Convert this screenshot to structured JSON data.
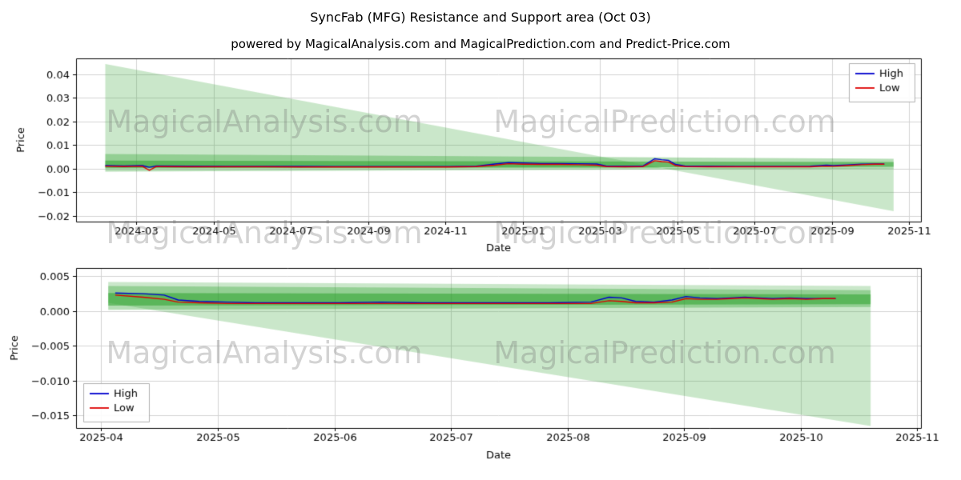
{
  "page": {
    "title": "SyncFab (MFG) Resistance and Support area (Oct 03)",
    "subtitle": "powered by MagicalAnalysis.com and MagicalPrediction.com and Predict-Price.com"
  },
  "watermarks": {
    "left": "MagicalAnalysis.com",
    "right": "MagicalPrediction.com"
  },
  "colors": {
    "high": "#0000cd",
    "low": "#dd0000",
    "band": "#2ca02c",
    "grid": "#d3d3d3",
    "axis": "#000000"
  },
  "chart_data": [
    {
      "name": "top-chart",
      "type": "line",
      "xlabel": "Date",
      "ylabel": "Price",
      "grid": true,
      "xlim": [
        2024.037,
        2025.859
      ],
      "ylim": [
        -0.0224,
        0.0467
      ],
      "x_ticks": [
        {
          "v": 2024.1667,
          "label": "2024-03"
        },
        {
          "v": 2024.3333,
          "label": "2024-05"
        },
        {
          "v": 2024.5,
          "label": "2024-07"
        },
        {
          "v": 2024.6667,
          "label": "2024-09"
        },
        {
          "v": 2024.8333,
          "label": "2024-11"
        },
        {
          "v": 2025.0,
          "label": "2025-01"
        },
        {
          "v": 2025.1667,
          "label": "2025-03"
        },
        {
          "v": 2025.3333,
          "label": "2025-05"
        },
        {
          "v": 2025.5,
          "label": "2025-07"
        },
        {
          "v": 2025.6667,
          "label": "2025-09"
        },
        {
          "v": 2025.8333,
          "label": "2025-11"
        }
      ],
      "y_ticks": [
        {
          "v": 0.04,
          "label": "0.04"
        },
        {
          "v": 0.03,
          "label": "0.03"
        },
        {
          "v": 0.02,
          "label": "0.02"
        },
        {
          "v": 0.01,
          "label": "0.01"
        },
        {
          "v": 0.0,
          "label": "0.00"
        },
        {
          "v": -0.01,
          "label": "−0.01"
        },
        {
          "v": -0.02,
          "label": "−0.02"
        }
      ],
      "legend": {
        "position": "upper-right",
        "entries": [
          {
            "label": "High",
            "color": "#0000cd"
          },
          {
            "label": "Low",
            "color": "#dd0000"
          }
        ]
      },
      "bands": [
        {
          "name": "resistance-fan",
          "alpha": 0.25,
          "upper": [
            [
              2024.1,
              0.0443
            ],
            [
              2025.8,
              -0.018
            ]
          ],
          "lower": [
            [
              2024.1,
              0.0006
            ],
            [
              2025.8,
              0.0002
            ]
          ]
        },
        {
          "name": "outer-band",
          "alpha": 0.35,
          "upper": [
            [
              2024.1,
              0.0062
            ],
            [
              2025.8,
              0.0042
            ]
          ],
          "lower": [
            [
              2024.1,
              -0.0012
            ],
            [
              2025.8,
              0.0
            ]
          ]
        },
        {
          "name": "inner-band",
          "alpha": 0.55,
          "upper": [
            [
              2024.1,
              0.0034
            ],
            [
              2025.8,
              0.0028
            ]
          ],
          "lower": [
            [
              2024.1,
              0.0002
            ],
            [
              2025.8,
              0.0008
            ]
          ]
        }
      ],
      "series": [
        {
          "name": "High",
          "color": "#0000cd",
          "points": [
            [
              2024.1,
              0.0013
            ],
            [
              2024.14,
              0.0012
            ],
            [
              2024.18,
              0.0013
            ],
            [
              2024.195,
              0.0006
            ],
            [
              2024.21,
              0.0012
            ],
            [
              2024.28,
              0.0011
            ],
            [
              2024.36,
              0.001
            ],
            [
              2024.44,
              0.001
            ],
            [
              2024.52,
              0.001
            ],
            [
              2024.6,
              0.0009
            ],
            [
              2024.68,
              0.0009
            ],
            [
              2024.76,
              0.0009
            ],
            [
              2024.84,
              0.0009
            ],
            [
              2024.9,
              0.0011
            ],
            [
              2024.94,
              0.002
            ],
            [
              2024.97,
              0.0026
            ],
            [
              2025.0,
              0.0024
            ],
            [
              2025.04,
              0.0022
            ],
            [
              2025.08,
              0.0022
            ],
            [
              2025.12,
              0.0021
            ],
            [
              2025.16,
              0.002
            ],
            [
              2025.18,
              0.0012
            ],
            [
              2025.22,
              0.0011
            ],
            [
              2025.26,
              0.0012
            ],
            [
              2025.285,
              0.0042
            ],
            [
              2025.3,
              0.0038
            ],
            [
              2025.315,
              0.0035
            ],
            [
              2025.33,
              0.0018
            ],
            [
              2025.35,
              0.0012
            ],
            [
              2025.4,
              0.0011
            ],
            [
              2025.46,
              0.001
            ],
            [
              2025.52,
              0.001
            ],
            [
              2025.58,
              0.001
            ],
            [
              2025.62,
              0.0011
            ],
            [
              2025.655,
              0.0015
            ],
            [
              2025.67,
              0.0013
            ],
            [
              2025.7,
              0.0016
            ],
            [
              2025.73,
              0.0019
            ],
            [
              2025.76,
              0.002
            ],
            [
              2025.78,
              0.002
            ]
          ]
        },
        {
          "name": "Low",
          "color": "#dd0000",
          "points": [
            [
              2024.1,
              0.001
            ],
            [
              2024.14,
              0.0009
            ],
            [
              2024.18,
              0.001
            ],
            [
              2024.195,
              -0.0007
            ],
            [
              2024.21,
              0.0009
            ],
            [
              2024.28,
              0.0008
            ],
            [
              2024.36,
              0.0008
            ],
            [
              2024.44,
              0.0008
            ],
            [
              2024.52,
              0.0007
            ],
            [
              2024.6,
              0.0007
            ],
            [
              2024.68,
              0.0007
            ],
            [
              2024.76,
              0.0007
            ],
            [
              2024.84,
              0.0007
            ],
            [
              2024.9,
              0.0009
            ],
            [
              2024.94,
              0.0015
            ],
            [
              2024.97,
              0.0021
            ],
            [
              2025.0,
              0.0019
            ],
            [
              2025.04,
              0.0018
            ],
            [
              2025.08,
              0.0018
            ],
            [
              2025.12,
              0.0017
            ],
            [
              2025.16,
              0.0015
            ],
            [
              2025.18,
              0.0009
            ],
            [
              2025.22,
              0.0008
            ],
            [
              2025.26,
              0.0009
            ],
            [
              2025.285,
              0.0034
            ],
            [
              2025.3,
              0.003
            ],
            [
              2025.315,
              0.0028
            ],
            [
              2025.33,
              0.0013
            ],
            [
              2025.35,
              0.0009
            ],
            [
              2025.4,
              0.0008
            ],
            [
              2025.46,
              0.0008
            ],
            [
              2025.52,
              0.0008
            ],
            [
              2025.58,
              0.0008
            ],
            [
              2025.62,
              0.0008
            ],
            [
              2025.655,
              0.0011
            ],
            [
              2025.67,
              0.001
            ],
            [
              2025.7,
              0.0013
            ],
            [
              2025.73,
              0.0017
            ],
            [
              2025.76,
              0.0019
            ],
            [
              2025.78,
              0.0019
            ]
          ]
        }
      ]
    },
    {
      "name": "bottom-chart",
      "type": "line",
      "xlabel": "Date",
      "ylabel": "Price",
      "grid": true,
      "xlim": [
        2025.232,
        2025.836
      ],
      "ylim": [
        -0.0168,
        0.0062
      ],
      "x_ticks": [
        {
          "v": 2025.25,
          "label": "2025-04"
        },
        {
          "v": 2025.3333,
          "label": "2025-05"
        },
        {
          "v": 2025.4167,
          "label": "2025-06"
        },
        {
          "v": 2025.5,
          "label": "2025-07"
        },
        {
          "v": 2025.5833,
          "label": "2025-08"
        },
        {
          "v": 2025.6667,
          "label": "2025-09"
        },
        {
          "v": 2025.75,
          "label": "2025-10"
        },
        {
          "v": 2025.8333,
          "label": "2025-11"
        }
      ],
      "y_ticks": [
        {
          "v": 0.005,
          "label": "0.005"
        },
        {
          "v": 0.0,
          "label": "0.000"
        },
        {
          "v": -0.005,
          "label": "−0.005"
        },
        {
          "v": -0.01,
          "label": "−0.010"
        },
        {
          "v": -0.015,
          "label": "−0.015"
        }
      ],
      "legend": {
        "position": "lower-left",
        "entries": [
          {
            "label": "High",
            "color": "#0000cd"
          },
          {
            "label": "Low",
            "color": "#dd0000"
          }
        ]
      },
      "bands": [
        {
          "name": "resistance-fan",
          "alpha": 0.25,
          "upper": [
            [
              2025.255,
              0.0042
            ],
            [
              2025.8,
              0.0036
            ]
          ],
          "lower": [
            [
              2025.255,
              0.0012
            ],
            [
              2025.8,
              -0.0165
            ]
          ]
        },
        {
          "name": "outer-band",
          "alpha": 0.35,
          "upper": [
            [
              2025.255,
              0.0036
            ],
            [
              2025.8,
              0.003
            ]
          ],
          "lower": [
            [
              2025.255,
              0.0002
            ],
            [
              2025.8,
              0.0006
            ]
          ]
        },
        {
          "name": "inner-band",
          "alpha": 0.55,
          "upper": [
            [
              2025.255,
              0.0026
            ],
            [
              2025.8,
              0.0024
            ]
          ],
          "lower": [
            [
              2025.255,
              0.0008
            ],
            [
              2025.8,
              0.001
            ]
          ]
        }
      ],
      "series": [
        {
          "name": "High",
          "color": "#0000cd",
          "points": [
            [
              2025.26,
              0.0026
            ],
            [
              2025.28,
              0.0025
            ],
            [
              2025.295,
              0.0023
            ],
            [
              2025.305,
              0.0016
            ],
            [
              2025.32,
              0.0014
            ],
            [
              2025.34,
              0.0013
            ],
            [
              2025.36,
              0.0012
            ],
            [
              2025.39,
              0.0012
            ],
            [
              2025.42,
              0.0012
            ],
            [
              2025.45,
              0.0013
            ],
            [
              2025.48,
              0.0012
            ],
            [
              2025.51,
              0.0012
            ],
            [
              2025.54,
              0.0012
            ],
            [
              2025.57,
              0.0012
            ],
            [
              2025.6,
              0.0013
            ],
            [
              2025.613,
              0.002
            ],
            [
              2025.622,
              0.0019
            ],
            [
              2025.632,
              0.0014
            ],
            [
              2025.645,
              0.0013
            ],
            [
              2025.658,
              0.0016
            ],
            [
              2025.668,
              0.0021
            ],
            [
              2025.678,
              0.0019
            ],
            [
              2025.69,
              0.0018
            ],
            [
              2025.7,
              0.0019
            ],
            [
              2025.71,
              0.002
            ],
            [
              2025.72,
              0.0019
            ],
            [
              2025.73,
              0.0018
            ],
            [
              2025.742,
              0.0019
            ],
            [
              2025.754,
              0.0018
            ],
            [
              2025.766,
              0.0018
            ],
            [
              2025.775,
              0.0018
            ]
          ]
        },
        {
          "name": "Low",
          "color": "#dd0000",
          "points": [
            [
              2025.26,
              0.0023
            ],
            [
              2025.28,
              0.002
            ],
            [
              2025.295,
              0.0017
            ],
            [
              2025.305,
              0.0013
            ],
            [
              2025.32,
              0.0012
            ],
            [
              2025.34,
              0.0011
            ],
            [
              2025.36,
              0.0011
            ],
            [
              2025.39,
              0.0011
            ],
            [
              2025.42,
              0.0011
            ],
            [
              2025.45,
              0.0011
            ],
            [
              2025.48,
              0.0011
            ],
            [
              2025.51,
              0.0011
            ],
            [
              2025.54,
              0.0011
            ],
            [
              2025.57,
              0.0011
            ],
            [
              2025.6,
              0.0011
            ],
            [
              2025.613,
              0.0015
            ],
            [
              2025.622,
              0.0014
            ],
            [
              2025.632,
              0.0012
            ],
            [
              2025.645,
              0.0012
            ],
            [
              2025.658,
              0.0013
            ],
            [
              2025.668,
              0.0018
            ],
            [
              2025.678,
              0.0017
            ],
            [
              2025.69,
              0.0017
            ],
            [
              2025.7,
              0.0018
            ],
            [
              2025.71,
              0.0019
            ],
            [
              2025.72,
              0.0018
            ],
            [
              2025.73,
              0.0017
            ],
            [
              2025.742,
              0.0018
            ],
            [
              2025.754,
              0.0017
            ],
            [
              2025.766,
              0.0018
            ],
            [
              2025.775,
              0.0018
            ]
          ]
        }
      ]
    }
  ]
}
